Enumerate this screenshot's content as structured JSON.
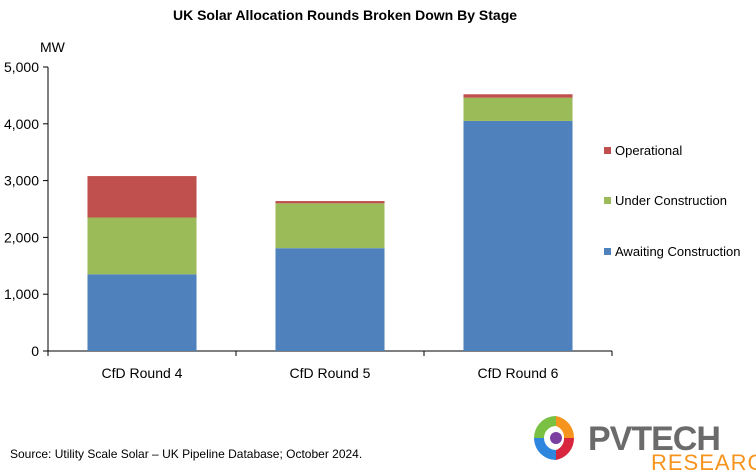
{
  "chart_data": {
    "type": "bar",
    "stacked": true,
    "title": "UK Solar Allocation Rounds Broken Down By Stage",
    "unit_label": "MW",
    "categories": [
      "CfD Round 4",
      "CfD Round 5",
      "CfD Round 6"
    ],
    "series": [
      {
        "name": "Awaiting Construction",
        "color": "#4f81bd",
        "values": [
          1350,
          1810,
          4050
        ]
      },
      {
        "name": "Under Construction",
        "color": "#9bbb59",
        "values": [
          1000,
          790,
          410
        ]
      },
      {
        "name": "Operational",
        "color": "#c0504d",
        "values": [
          730,
          40,
          60
        ]
      }
    ],
    "ylim": [
      0,
      5000
    ],
    "yticks": [
      0,
      1000,
      2000,
      3000,
      4000,
      5000
    ],
    "ytick_labels": [
      "0",
      "1,000",
      "2,000",
      "3,000",
      "4,000",
      "5,000"
    ],
    "legend_position": "right",
    "legend_order": [
      "Operational",
      "Under Construction",
      "Awaiting Construction"
    ],
    "grid": false
  },
  "source": "Source: Utility Scale Solar – UK Pipeline Database; October 2024.",
  "logo": {
    "line1": "PVTECH",
    "line2": "RESEARCH"
  }
}
